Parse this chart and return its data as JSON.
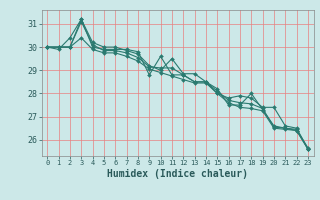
{
  "title": "",
  "xlabel": "Humidex (Indice chaleur)",
  "ylabel": "",
  "background_color": "#cce8e8",
  "grid_color": "#e88080",
  "line_color": "#2a7a70",
  "marker_color": "#2a7a70",
  "xlim": [
    -0.5,
    23.5
  ],
  "ylim": [
    25.3,
    31.6
  ],
  "yticks": [
    26,
    27,
    28,
    29,
    30,
    31
  ],
  "xticks": [
    0,
    1,
    2,
    3,
    4,
    5,
    6,
    7,
    8,
    9,
    10,
    11,
    12,
    13,
    14,
    15,
    16,
    17,
    18,
    19,
    20,
    21,
    22,
    23
  ],
  "series": [
    [
      30.0,
      29.9,
      30.4,
      31.2,
      30.0,
      29.9,
      29.9,
      29.9,
      29.8,
      28.8,
      29.6,
      28.8,
      28.8,
      28.5,
      28.5,
      28.0,
      27.8,
      27.9,
      27.8,
      27.4,
      27.4,
      26.6,
      26.5,
      25.6
    ],
    [
      30.0,
      30.0,
      30.0,
      31.2,
      30.2,
      30.0,
      30.0,
      29.85,
      29.7,
      29.2,
      29.0,
      29.5,
      28.85,
      28.85,
      28.5,
      28.2,
      27.5,
      27.5,
      28.0,
      27.3,
      26.6,
      26.5,
      26.4,
      25.6
    ],
    [
      30.0,
      30.0,
      30.0,
      31.1,
      30.1,
      29.85,
      29.85,
      29.75,
      29.55,
      29.15,
      29.1,
      29.1,
      28.8,
      28.5,
      28.5,
      28.1,
      27.7,
      27.6,
      27.55,
      27.35,
      26.55,
      26.5,
      26.45,
      25.65
    ],
    [
      30.0,
      30.0,
      30.0,
      30.4,
      29.9,
      29.75,
      29.75,
      29.6,
      29.4,
      29.05,
      28.9,
      28.75,
      28.6,
      28.45,
      28.45,
      28.0,
      27.6,
      27.4,
      27.35,
      27.25,
      26.5,
      26.45,
      26.4,
      25.6
    ]
  ]
}
